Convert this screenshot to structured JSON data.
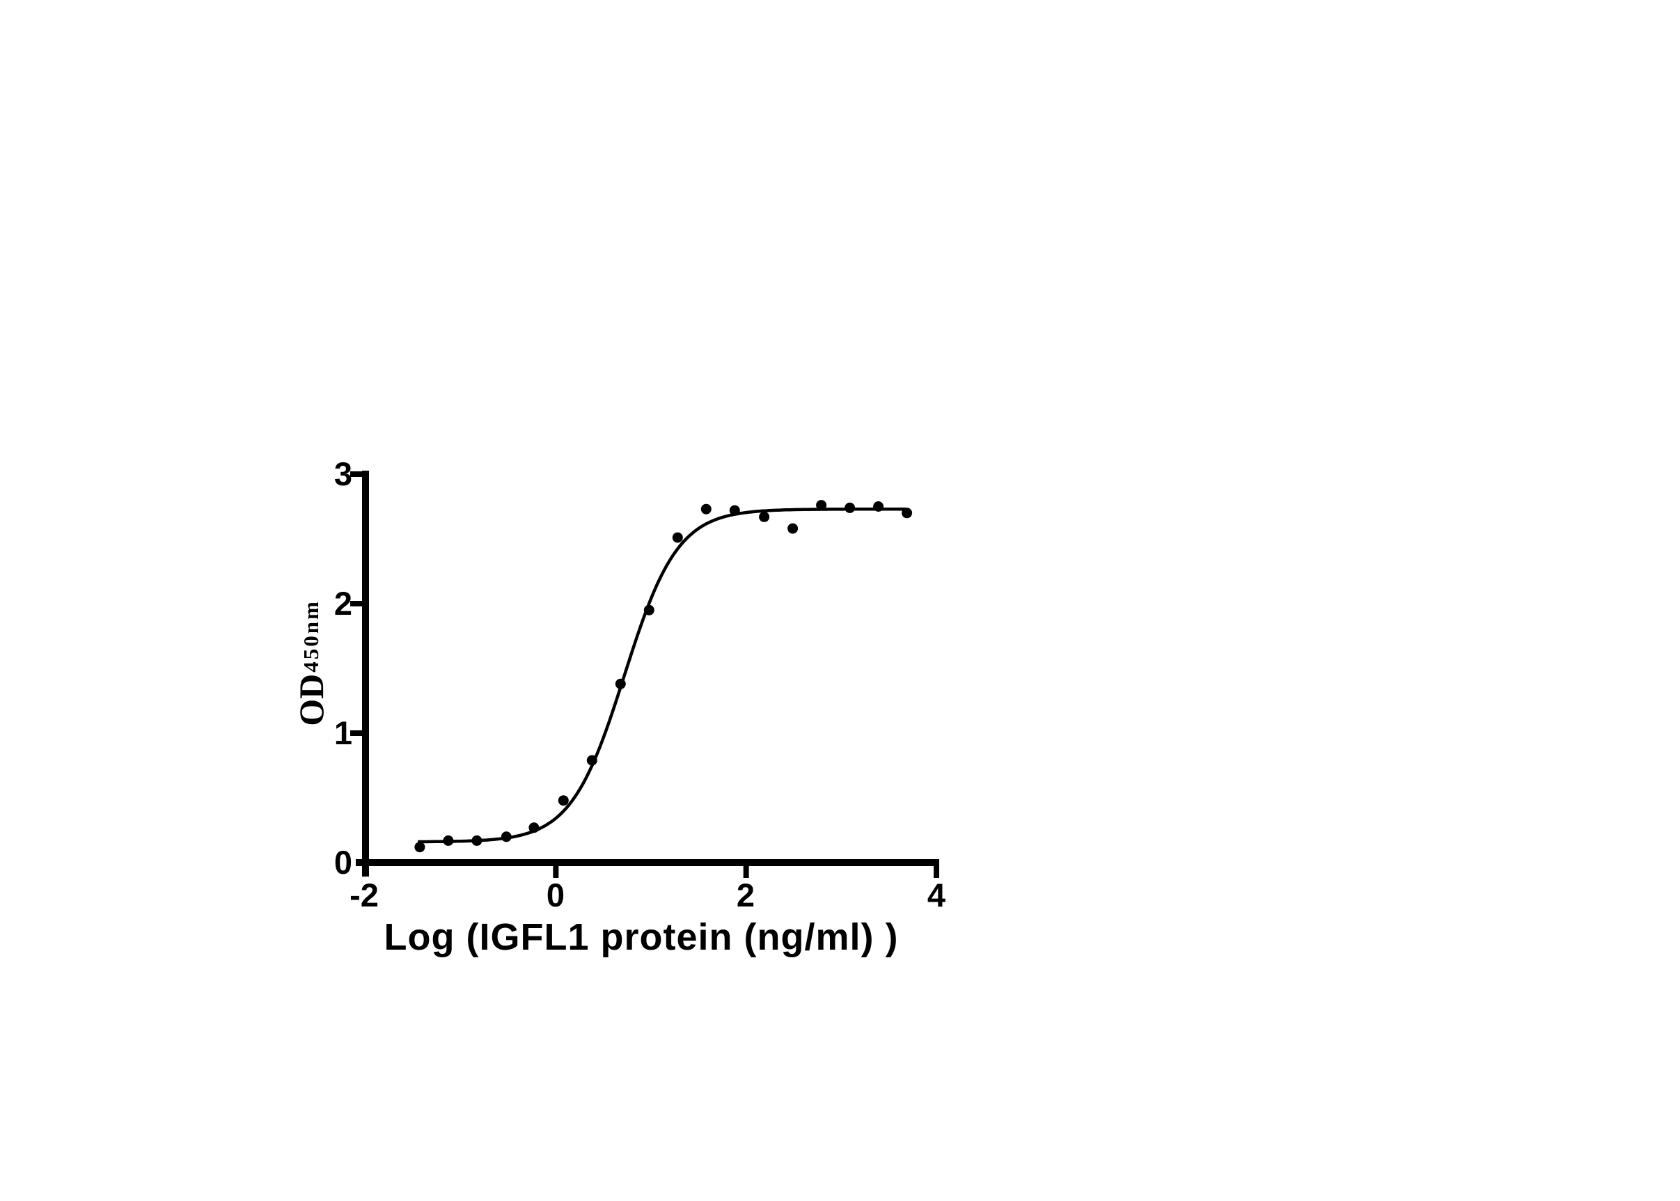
{
  "figure": {
    "background": "#ffffff"
  },
  "chart_data": {
    "type": "scatter",
    "title": "",
    "xlabel": "Log (IGFL1 protein (ng/ml) )",
    "ylabel": "OD",
    "ylabel_subscript": "450nm",
    "x": [
      -1.43,
      -1.13,
      -0.83,
      -0.52,
      -0.23,
      0.08,
      0.38,
      0.68,
      0.98,
      1.28,
      1.58,
      1.88,
      2.19,
      2.49,
      2.79,
      3.09,
      3.39,
      3.69
    ],
    "y": [
      0.12,
      0.17,
      0.17,
      0.2,
      0.27,
      0.48,
      0.79,
      1.38,
      1.95,
      2.51,
      2.73,
      2.72,
      2.67,
      2.58,
      2.76,
      2.74,
      2.75,
      2.7
    ],
    "xlim": [
      -2,
      4
    ],
    "ylim": [
      0,
      3
    ],
    "x_ticks": [
      -2,
      0,
      2,
      4
    ],
    "x_tick_labels": [
      "-2",
      "0",
      "2",
      "4"
    ],
    "y_ticks": [
      0,
      1,
      2,
      3
    ],
    "y_tick_labels": [
      "0",
      "1",
      "2",
      "3"
    ],
    "grid": false,
    "legend": "none",
    "marker": "filled-circle",
    "fit_curve": {
      "model": "four-parameter-logistic",
      "bottom": 0.16,
      "top": 2.73,
      "log_ec50": 0.72,
      "hill_slope": 1.55,
      "x_start": -1.45,
      "x_end": 3.7
    },
    "colors": {
      "points": "#000000",
      "curve": "#000000",
      "axes": "#000000",
      "text": "#000000",
      "background": "#ffffff"
    }
  }
}
